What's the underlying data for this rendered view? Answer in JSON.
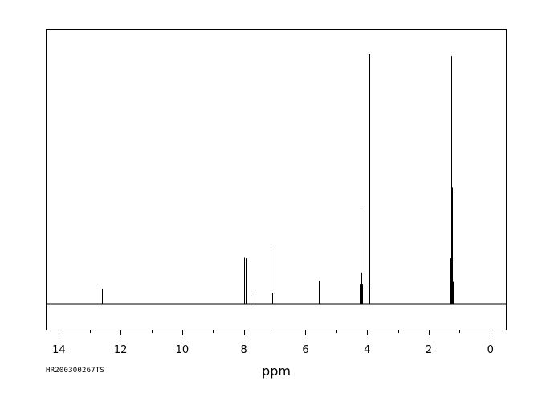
{
  "chart_data": {
    "type": "line",
    "title": "",
    "xlabel": "ppm",
    "ylabel": "",
    "xlim": [
      14.4,
      -0.5
    ],
    "x_reversed": true,
    "ylim": [
      -0.1,
      1.1
    ],
    "grid": false,
    "x_ticks": [
      14,
      12,
      10,
      8,
      6,
      4,
      2,
      0
    ],
    "x_tick_labels": [
      "14",
      "12",
      "10",
      "8",
      "6",
      "4",
      "2",
      "0"
    ],
    "baseline": 0,
    "series": [
      {
        "peaks": [
          {
            "ppm": 12.61,
            "height": 0.06
          },
          {
            "ppm": 7.98,
            "height": 0.185
          },
          {
            "ppm": 7.95,
            "height": 0.183
          },
          {
            "ppm": 7.78,
            "height": 0.034
          },
          {
            "ppm": 7.14,
            "height": 0.23
          },
          {
            "ppm": 7.12,
            "height": 0.134
          },
          {
            "ppm": 7.08,
            "height": 0.042
          },
          {
            "ppm": 5.58,
            "height": 0.092
          },
          {
            "ppm": 4.24,
            "height": 0.08
          },
          {
            "ppm": 4.21,
            "height": 0.375
          },
          {
            "ppm": 4.19,
            "height": 0.126
          },
          {
            "ppm": 4.17,
            "height": 0.08
          },
          {
            "ppm": 3.92,
            "height": 1.0
          },
          {
            "ppm": 3.96,
            "height": 0.06
          },
          {
            "ppm": 1.31,
            "height": 0.183
          },
          {
            "ppm": 1.28,
            "height": 0.467
          },
          {
            "ppm": 1.26,
            "height": 0.99
          },
          {
            "ppm": 1.24,
            "height": 0.465
          },
          {
            "ppm": 1.21,
            "height": 0.088
          }
        ]
      }
    ],
    "sample_id": "HR200300267TS"
  }
}
